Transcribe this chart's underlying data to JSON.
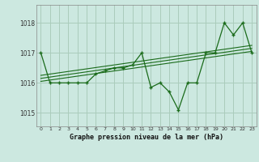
{
  "title": "Graphe pression niveau de la mer (hPa)",
  "background_color": "#cce8e0",
  "grid_color": "#aaccbb",
  "line_color": "#1a6b1a",
  "marker_color": "#1a6b1a",
  "xlim": [
    -0.5,
    23.5
  ],
  "ylim": [
    1014.55,
    1018.6
  ],
  "yticks": [
    1015,
    1016,
    1017,
    1018
  ],
  "xticks": [
    0,
    1,
    2,
    3,
    4,
    5,
    6,
    7,
    8,
    9,
    10,
    11,
    12,
    13,
    14,
    15,
    16,
    17,
    18,
    19,
    20,
    21,
    22,
    23
  ],
  "pressure_data": [
    1017.0,
    1016.0,
    1016.0,
    1016.0,
    1016.0,
    1016.0,
    1016.3,
    1016.4,
    1016.5,
    1016.5,
    1016.6,
    1017.0,
    1015.85,
    1016.0,
    1015.7,
    1015.1,
    1016.0,
    1016.0,
    1017.0,
    1017.0,
    1018.0,
    1017.6,
    1018.0,
    1017.0
  ],
  "trend_line1": [
    [
      0,
      1016.05
    ],
    [
      23,
      1017.05
    ]
  ],
  "trend_line2": [
    [
      0,
      1016.15
    ],
    [
      23,
      1017.15
    ]
  ],
  "trend_line3": [
    [
      0,
      1016.25
    ],
    [
      23,
      1017.25
    ]
  ]
}
